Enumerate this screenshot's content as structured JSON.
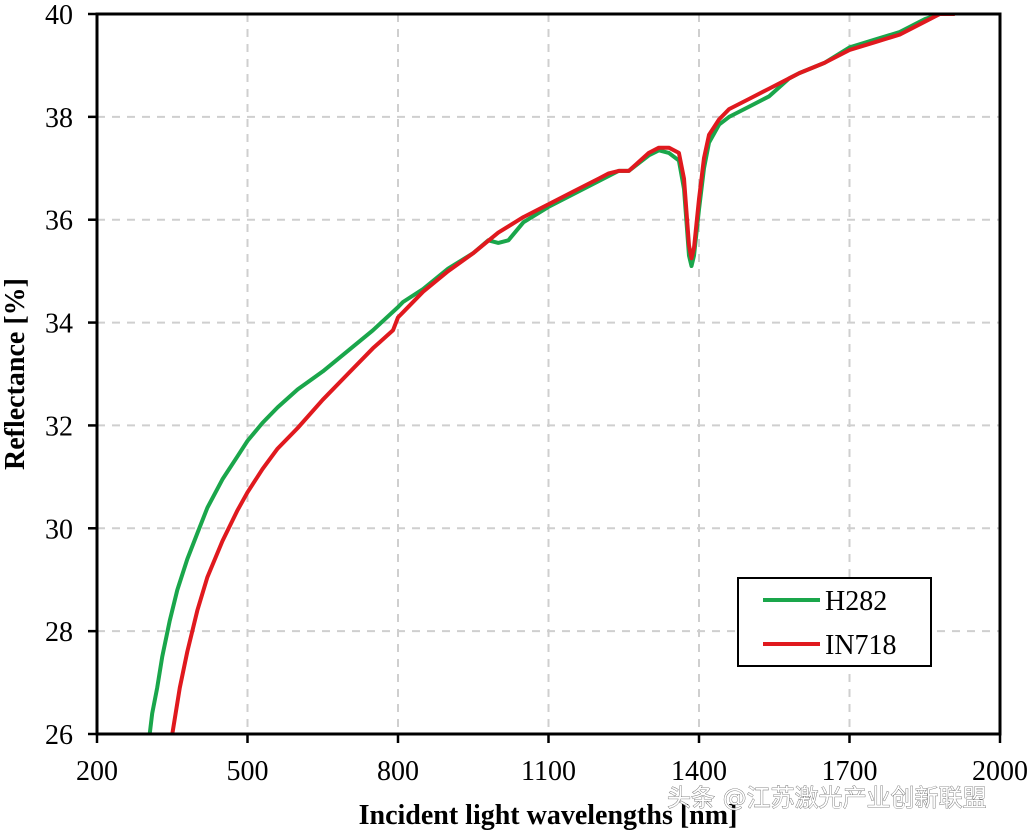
{
  "chart_data": {
    "type": "line",
    "title": "",
    "xlabel": "Incident light wavelengths [nm]",
    "ylabel": "Reflectance [%]",
    "xlim": [
      200,
      2000
    ],
    "ylim": [
      26,
      40
    ],
    "xticks": [
      200,
      500,
      800,
      1100,
      1400,
      1700,
      2000
    ],
    "yticks": [
      26,
      28,
      30,
      32,
      34,
      36,
      38,
      40
    ],
    "grid": true,
    "grid_style": "dashed light gray",
    "legend_position": "lower right",
    "series": [
      {
        "name": "H282",
        "color": "#1aa64b",
        "x": [
          305,
          310,
          320,
          330,
          345,
          360,
          380,
          400,
          420,
          450,
          480,
          500,
          530,
          560,
          600,
          650,
          700,
          750,
          800,
          810,
          850,
          900,
          950,
          980,
          1000,
          1020,
          1050,
          1100,
          1150,
          1200,
          1220,
          1240,
          1260,
          1300,
          1320,
          1340,
          1360,
          1370,
          1380,
          1385,
          1390,
          1400,
          1410,
          1420,
          1440,
          1460,
          1500,
          1540,
          1580,
          1600,
          1650,
          1700,
          1750,
          1800,
          1850,
          1880
        ],
        "y": [
          26.0,
          26.4,
          26.9,
          27.5,
          28.2,
          28.8,
          29.4,
          29.9,
          30.4,
          30.95,
          31.4,
          31.7,
          32.05,
          32.35,
          32.7,
          33.05,
          33.45,
          33.85,
          34.3,
          34.4,
          34.65,
          35.05,
          35.35,
          35.6,
          35.55,
          35.6,
          35.95,
          36.25,
          36.5,
          36.75,
          36.85,
          36.95,
          36.95,
          37.25,
          37.35,
          37.3,
          37.15,
          36.6,
          35.3,
          35.1,
          35.3,
          36.2,
          37.0,
          37.5,
          37.85,
          38.0,
          38.2,
          38.4,
          38.75,
          38.85,
          39.05,
          39.35,
          39.5,
          39.65,
          39.9,
          40.0
        ]
      },
      {
        "name": "IN718",
        "color": "#e0191e",
        "x": [
          350,
          355,
          365,
          380,
          400,
          420,
          450,
          480,
          500,
          530,
          560,
          600,
          650,
          700,
          750,
          790,
          800,
          810,
          850,
          900,
          950,
          1000,
          1050,
          1100,
          1150,
          1200,
          1220,
          1240,
          1260,
          1300,
          1320,
          1340,
          1360,
          1370,
          1380,
          1385,
          1390,
          1400,
          1410,
          1420,
          1440,
          1460,
          1500,
          1540,
          1580,
          1600,
          1650,
          1700,
          1750,
          1800,
          1850,
          1880,
          1910
        ],
        "y": [
          26.0,
          26.3,
          26.9,
          27.6,
          28.4,
          29.05,
          29.75,
          30.35,
          30.7,
          31.15,
          31.55,
          31.95,
          32.5,
          33.0,
          33.5,
          33.85,
          34.1,
          34.2,
          34.6,
          35.0,
          35.35,
          35.75,
          36.05,
          36.3,
          36.55,
          36.8,
          36.9,
          36.95,
          36.95,
          37.3,
          37.4,
          37.4,
          37.3,
          36.8,
          35.5,
          35.25,
          35.45,
          36.4,
          37.2,
          37.65,
          37.95,
          38.15,
          38.35,
          38.55,
          38.75,
          38.85,
          39.05,
          39.3,
          39.45,
          39.6,
          39.85,
          40.0,
          40.0
        ]
      }
    ]
  },
  "legend": {
    "items": [
      {
        "label": "H282",
        "color": "#1aa64b"
      },
      {
        "label": "IN718",
        "color": "#e0191e"
      }
    ]
  },
  "watermark": "头条 @江苏激光产业创新联盟"
}
